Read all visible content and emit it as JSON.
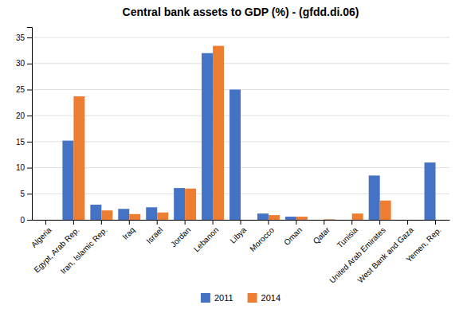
{
  "chart_data": {
    "type": "bar",
    "title": "Central bank assets to GDP (%) - (gfdd.di.06)",
    "categories": [
      "Algeria",
      "Egypt, Arab Rep.",
      "Iran, Islamic Rep.",
      "Iraq",
      "Israel",
      "Jordan",
      "Lebanon",
      "Libya",
      "Morocco",
      "Oman",
      "Qatar",
      "Tunisia",
      "United Arab Emirates",
      "West Bank and Gaza",
      "Yemen, Rep."
    ],
    "series": [
      {
        "name": "2011",
        "color": "#4472c4",
        "values": [
          0,
          15.2,
          2.9,
          2.1,
          2.4,
          6.1,
          32.0,
          25.0,
          1.2,
          0.6,
          0,
          0,
          8.5,
          0,
          11.0
        ]
      },
      {
        "name": "2014",
        "color": "#ed7d31",
        "values": [
          0,
          23.7,
          1.8,
          1.1,
          1.4,
          6.0,
          33.4,
          0,
          0.9,
          0.6,
          0.1,
          1.2,
          3.7,
          0,
          0
        ]
      }
    ],
    "ylim": [
      0,
      37
    ],
    "yticks": [
      0,
      5,
      10,
      15,
      20,
      25,
      30,
      35
    ],
    "grid": true,
    "legend": "bottom"
  }
}
